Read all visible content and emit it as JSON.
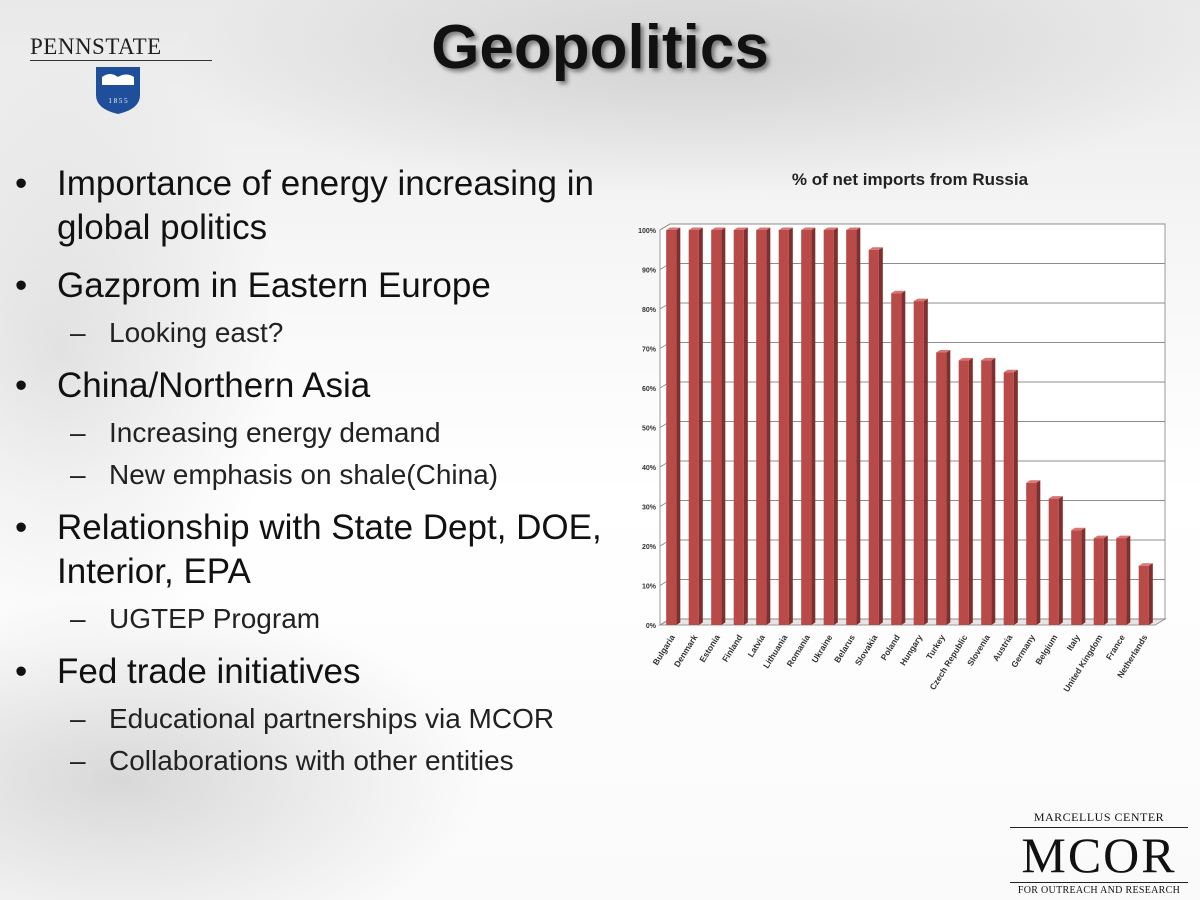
{
  "slide": {
    "title": "Geopolitics",
    "logo_left": {
      "name": "PENNSTATE",
      "year": "1 8 5 5"
    },
    "logo_right": {
      "top": "MARCELLUS CENTER",
      "main": "MCOR",
      "bottom": "FOR OUTREACH AND RESEARCH"
    },
    "bullets": [
      {
        "level": 1,
        "marker": "•",
        "text": "Importance of energy increasing in global politics"
      },
      {
        "level": 1,
        "marker": "•",
        "text": "Gazprom in Eastern Europe"
      },
      {
        "level": 2,
        "marker": "–",
        "text": "Looking east?"
      },
      {
        "level": 1,
        "marker": "•",
        "text": "China/Northern  Asia"
      },
      {
        "level": 2,
        "marker": "–",
        "text": "Increasing energy demand"
      },
      {
        "level": 2,
        "marker": "–",
        "text": "New emphasis on shale(China)"
      },
      {
        "level": 1,
        "marker": "•",
        "text": "Relationship with State Dept, DOE, Interior, EPA"
      },
      {
        "level": 2,
        "marker": "–",
        "text": "UGTEP Program"
      },
      {
        "level": 1,
        "marker": "•",
        "text": "Fed trade initiatives"
      },
      {
        "level": 2,
        "marker": "–",
        "text": "Educational partnerships via MCOR"
      },
      {
        "level": 2,
        "marker": "–",
        "text": "Collaborations with other entities"
      }
    ]
  },
  "chart_data": {
    "type": "bar",
    "title": "% of net imports from Russia",
    "xlabel": "",
    "ylabel": "",
    "ylim": [
      0,
      100
    ],
    "yticks": [
      0,
      10,
      20,
      30,
      40,
      50,
      60,
      70,
      80,
      90,
      100
    ],
    "ytick_labels": [
      "0%",
      "10%",
      "20%",
      "30%",
      "40%",
      "50%",
      "60%",
      "70%",
      "80%",
      "90%",
      "100%"
    ],
    "grid": true,
    "legend": "none",
    "bar_color": "#b94a48",
    "categories": [
      "Bulgaria",
      "Denmark",
      "Estonia",
      "Finland",
      "Latvia",
      "Lithuania",
      "Romania",
      "Ukraine",
      "Belarus",
      "Slovakia",
      "Poland",
      "Hungary",
      "Turkey",
      "Czech Republic",
      "Slovenia",
      "Austria",
      "Germany",
      "Belgium",
      "Italy",
      "United Kingdom",
      "France",
      "Netherlands"
    ],
    "values": [
      100,
      100,
      100,
      100,
      100,
      100,
      100,
      100,
      100,
      95,
      84,
      82,
      69,
      67,
      67,
      64,
      36,
      32,
      24,
      22,
      22,
      15
    ]
  }
}
